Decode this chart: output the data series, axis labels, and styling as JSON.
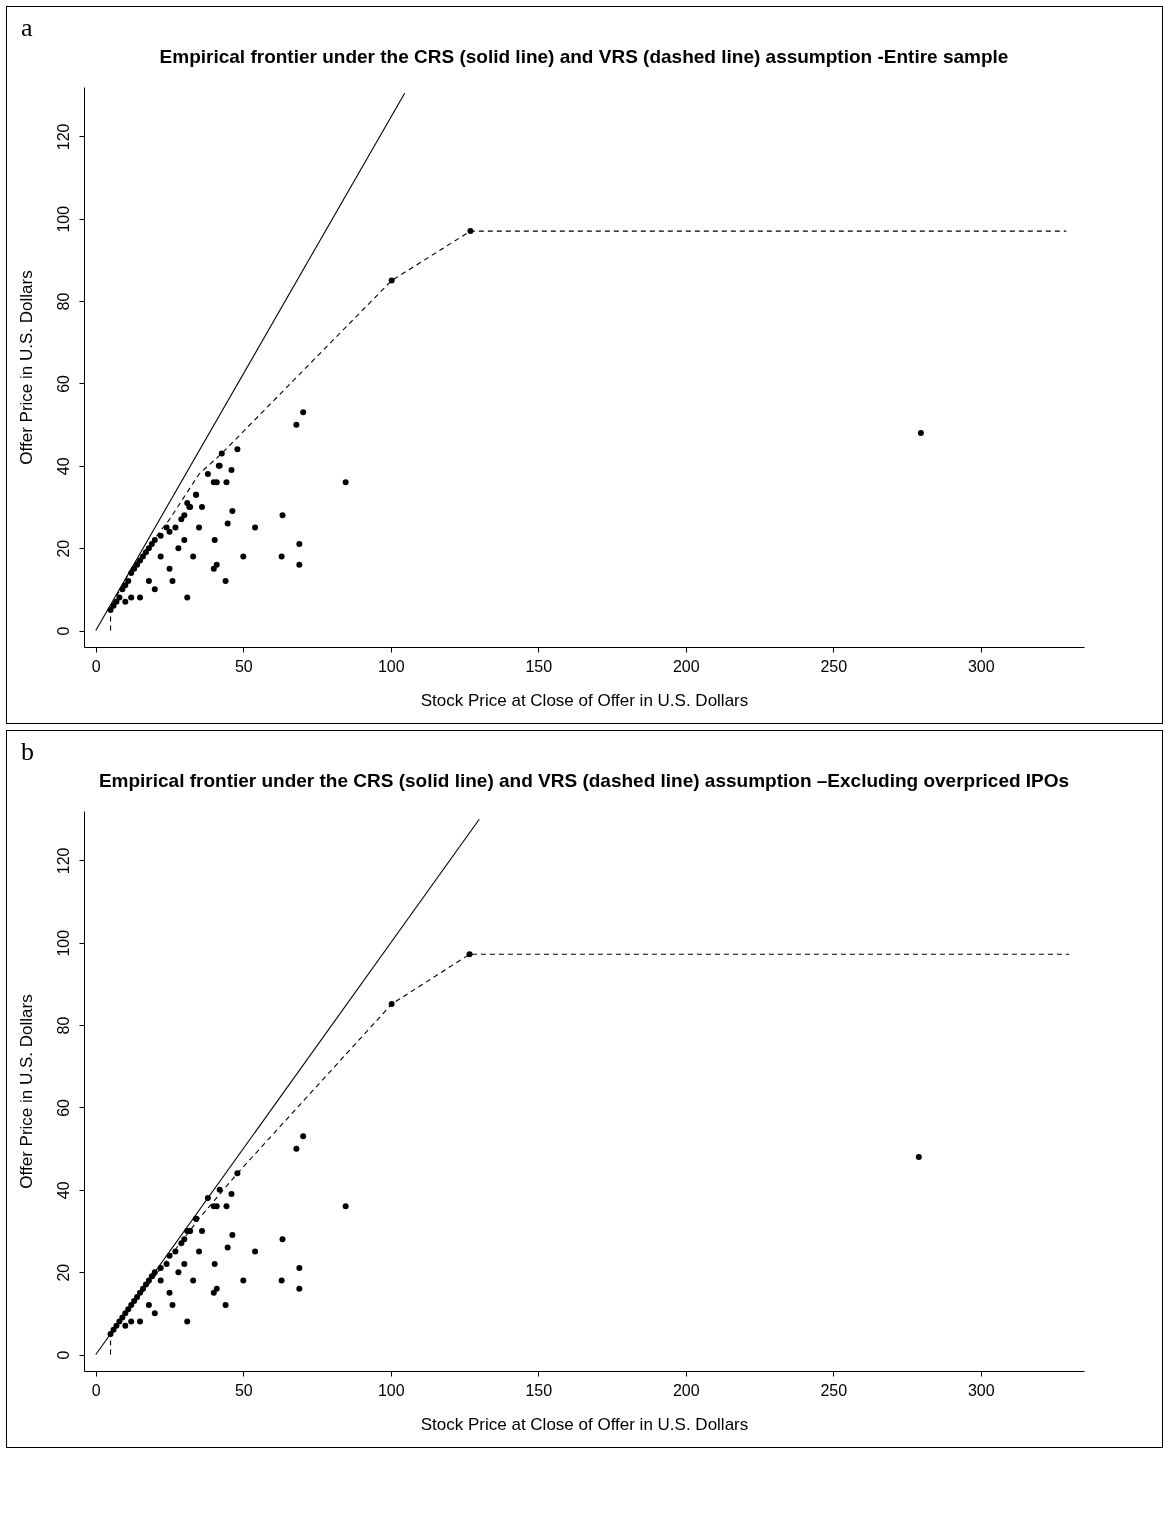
{
  "chart_data": [
    {
      "type": "scatter",
      "title": "Empirical frontier under the CRS (solid line) and VRS (dashed line) assumption -Entire sample",
      "xlabel": "Stock Price at Close of Offer in U.S. Dollars",
      "ylabel": "Offer Price in U.S. Dollars",
      "annotations": [
        "a"
      ],
      "xlim": [
        -4,
        335
      ],
      "ylim": [
        -4,
        132
      ],
      "xticks": [
        0,
        50,
        100,
        150,
        200,
        250,
        300
      ],
      "yticks": [
        0,
        20,
        40,
        60,
        80,
        100,
        120
      ],
      "grid": false,
      "series": [
        {
          "marker": "circle",
          "color": "#000000",
          "x": [
            5,
            6,
            7,
            8,
            9,
            10,
            11,
            12,
            13,
            14,
            15,
            16,
            17,
            18,
            19,
            20,
            22,
            24,
            25,
            27,
            29,
            30,
            31,
            32,
            34,
            36,
            38,
            40,
            42,
            42.7,
            41.7,
            41,
            44.3,
            34,
            31.7,
            46,
            48,
            46.3,
            44.7,
            40.3,
            54,
            63.3,
            69,
            69,
            63,
            50,
            44,
            31,
            40,
            41,
            70.3,
            68,
            84.7,
            279.7,
            100.3,
            127,
            20,
            25,
            15,
            18,
            22,
            28,
            30,
            35,
            33,
            26,
            12,
            10
          ],
          "values": [
            5,
            6,
            7,
            8,
            10,
            11,
            12,
            14,
            15,
            16,
            17,
            18,
            19,
            20,
            21,
            22,
            23,
            25,
            24,
            25,
            27,
            28,
            31,
            30,
            33,
            30,
            38,
            36,
            40,
            43,
            40,
            36,
            36,
            33,
            30,
            39,
            44,
            29,
            26,
            22,
            25,
            28,
            21,
            16,
            18,
            18,
            12,
            8,
            15,
            16,
            53,
            50,
            36,
            48,
            85,
            97,
            10,
            15,
            8,
            12,
            18,
            20,
            22,
            25,
            18,
            12,
            8,
            7
          ]
        },
        {
          "type": "line",
          "color": "#000000",
          "line_style": "solid",
          "x": [
            0,
            104.7
          ],
          "values": [
            0,
            130.5
          ]
        },
        {
          "type": "line",
          "color": "#000000",
          "line_style": "dashed",
          "x": [
            5,
            5,
            12,
            25,
            35,
            42.7,
            100.3,
            127,
            329
          ],
          "values": [
            0,
            5.6,
            15,
            27,
            38,
            43,
            85,
            97,
            97
          ]
        }
      ]
    },
    {
      "type": "scatter",
      "title": "Empirical frontier under the CRS (solid line) and VRS (dashed line) assumption –Excluding overpriced IPOs",
      "xlabel": "Stock Price at Close of Offer in U.S. Dollars",
      "ylabel": "Offer Price in U.S. Dollars",
      "annotations": [
        "b"
      ],
      "xlim": [
        -4,
        335
      ],
      "ylim": [
        -4,
        132
      ],
      "xticks": [
        0,
        50,
        100,
        150,
        200,
        250,
        300
      ],
      "yticks": [
        0,
        20,
        40,
        60,
        80,
        100,
        120
      ],
      "grid": false,
      "series": [
        {
          "marker": "circle",
          "color": "#000000",
          "x": [
            5,
            6,
            7,
            8,
            9,
            10,
            11,
            12,
            13,
            14,
            15,
            16,
            17,
            18,
            19,
            20,
            22,
            24,
            25,
            27,
            29,
            30,
            31,
            32,
            34,
            36,
            38,
            40,
            42,
            41,
            44.3,
            34,
            31.7,
            46,
            48,
            46.3,
            44.7,
            40.3,
            54,
            63.3,
            69,
            69,
            63,
            50,
            44,
            31,
            40,
            41,
            70.3,
            68,
            84.7,
            279,
            100.3,
            126.7,
            20,
            25,
            15,
            18,
            22,
            28,
            30,
            35,
            33,
            26,
            12,
            10
          ],
          "values": [
            5,
            6,
            7,
            8,
            9,
            10,
            11,
            12,
            13,
            14,
            15,
            16,
            17,
            18,
            19,
            20,
            21,
            22,
            24,
            25,
            27,
            28,
            30,
            30,
            33,
            30,
            38,
            36,
            40,
            36,
            36,
            33,
            30,
            39,
            44,
            29,
            26,
            22,
            25,
            28,
            21,
            16,
            18,
            18,
            12,
            8,
            15,
            16,
            53,
            50,
            36,
            48,
            85.1,
            97.2,
            10,
            15,
            8,
            12,
            18,
            20,
            22,
            25,
            18,
            12,
            8,
            7
          ]
        },
        {
          "type": "line",
          "color": "#000000",
          "line_style": "solid",
          "x": [
            0,
            130
          ],
          "values": [
            0,
            130
          ]
        },
        {
          "type": "line",
          "color": "#000000",
          "line_style": "dashed",
          "x": [
            5,
            5,
            20,
            35,
            48,
            100.3,
            126.7,
            330
          ],
          "values": [
            0,
            4.9,
            19,
            33,
            44,
            85.1,
            97.2,
            97.2
          ]
        }
      ]
    }
  ]
}
